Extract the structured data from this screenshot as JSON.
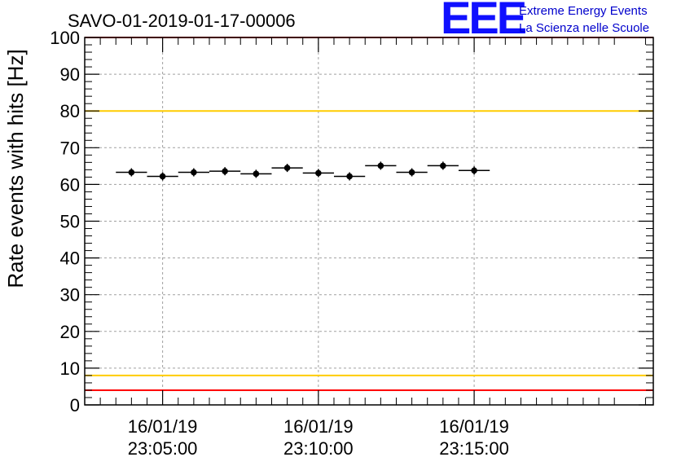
{
  "chart_data": {
    "type": "scatter",
    "title": "SAVO-01-2019-01-17-00006",
    "xlabel": "",
    "ylabel": "Rate events with hits [Hz]",
    "xlim": [
      -2.5,
      15.75
    ],
    "ylim": [
      0,
      100
    ],
    "yticks": [
      "0",
      "10",
      "20",
      "30",
      "40",
      "50",
      "60",
      "70",
      "80",
      "90",
      "100"
    ],
    "xticks": [
      {
        "minute": 0,
        "date": "16/01/19",
        "time": "23:05:00"
      },
      {
        "minute": 5,
        "date": "16/01/19",
        "time": "23:10:00"
      },
      {
        "minute": 10,
        "date": "16/01/19",
        "time": "23:15:00"
      }
    ],
    "bin_width_min": 1,
    "points": [
      {
        "x": -1.0,
        "y": 63.3
      },
      {
        "x": 0.0,
        "y": 62.2
      },
      {
        "x": 1.0,
        "y": 63.3
      },
      {
        "x": 2.0,
        "y": 63.6
      },
      {
        "x": 3.0,
        "y": 62.9
      },
      {
        "x": 4.0,
        "y": 64.5
      },
      {
        "x": 5.0,
        "y": 63.1
      },
      {
        "x": 6.0,
        "y": 62.2
      },
      {
        "x": 7.0,
        "y": 65.1
      },
      {
        "x": 8.0,
        "y": 63.3
      },
      {
        "x": 9.0,
        "y": 65.1
      },
      {
        "x": 10.0,
        "y": 63.8
      }
    ],
    "reference_lines": [
      {
        "y": 100,
        "color": "#ff0000"
      },
      {
        "y": 80,
        "color": "#ffcc00"
      },
      {
        "y": 8,
        "color": "#ffcc00"
      },
      {
        "y": 4,
        "color": "#ff0000"
      }
    ],
    "grid": true
  },
  "logo": {
    "mark": "EEE",
    "line1": "Extreme Energy Events",
    "line2": "La Scienza nelle Scuole"
  }
}
